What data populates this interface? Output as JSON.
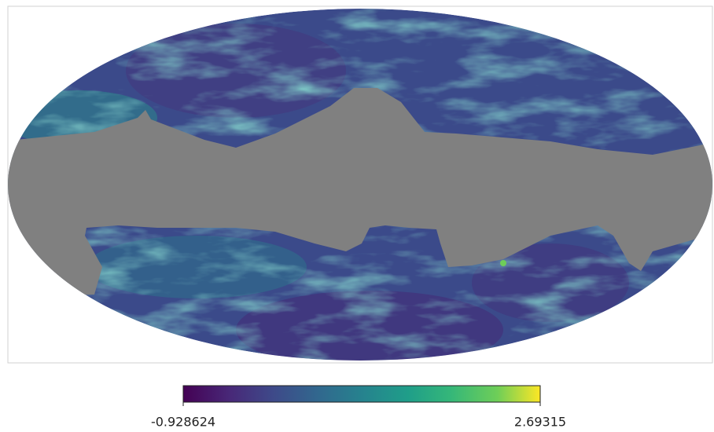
{
  "map": {
    "projection": "mollweide",
    "colorbar": {
      "min": -0.928624,
      "max": 2.69315,
      "colormap": "viridis"
    }
  }
}
